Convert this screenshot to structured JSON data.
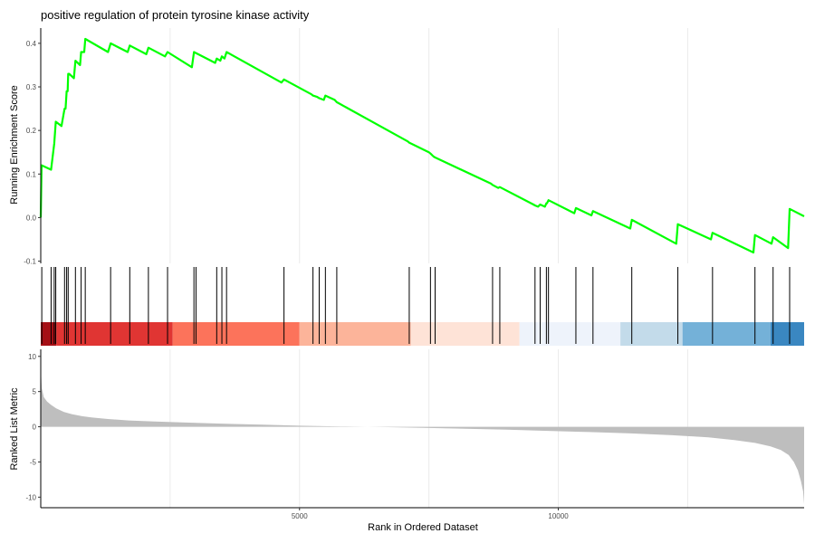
{
  "chart_data": {
    "type": "line",
    "title": "positive regulation of protein tyrosine kinase activity",
    "xlabel": "Rank in Ordered Dataset",
    "xlim": [
      0,
      14750
    ],
    "x_ticks": [
      5000,
      10000
    ],
    "panels": {
      "enrichment": {
        "ylabel": "Running Enrichment Score",
        "ylim": [
          -0.105,
          0.435
        ],
        "y_ticks": [
          -0.1,
          0.0,
          0.1,
          0.2,
          0.3,
          0.4
        ],
        "line_color": "#00ff00",
        "series": [
          {
            "x": [
              0,
              15,
              20,
              200,
              260,
              290,
              400,
              460,
              480,
              500,
              520,
              530,
              550,
              640,
              670,
              760,
              780,
              840,
              860,
              1300,
              1350,
              1680,
              1720,
              2040,
              2080,
              2400,
              2450,
              2920,
              2960,
              3370,
              3400,
              3470,
              3500,
              3550,
              3590,
              4650,
              4700,
              5230,
              5260,
              5340,
              5380,
              5470,
              5500,
              5680,
              5720,
              7090,
              7120,
              7500,
              7530,
              7590,
              7620,
              8700,
              8730,
              8840,
              8870,
              9520,
              9550,
              9610,
              9650,
              9740,
              9770,
              9780,
              9810,
              10310,
              10340,
              10640,
              10670,
              11390,
              11420,
              12280,
              12310,
              12950,
              12980,
              13770,
              13800,
              14120,
              14150,
              14440,
              14470,
              14750
            ],
            "y": [
              0.0,
              0.12,
              0.12,
              0.11,
              0.17,
              0.22,
              0.21,
              0.25,
              0.25,
              0.29,
              0.29,
              0.33,
              0.33,
              0.32,
              0.36,
              0.35,
              0.38,
              0.38,
              0.41,
              0.38,
              0.4,
              0.38,
              0.395,
              0.375,
              0.39,
              0.37,
              0.38,
              0.345,
              0.38,
              0.355,
              0.365,
              0.36,
              0.37,
              0.365,
              0.38,
              0.31,
              0.317,
              0.283,
              0.28,
              0.277,
              0.274,
              0.27,
              0.28,
              0.27,
              0.265,
              0.175,
              0.172,
              0.15,
              0.147,
              0.14,
              0.138,
              0.078,
              0.075,
              0.068,
              0.07,
              0.03,
              0.028,
              0.025,
              0.03,
              0.025,
              0.033,
              0.033,
              0.04,
              0.01,
              0.022,
              0.005,
              0.015,
              -0.025,
              -0.005,
              -0.06,
              -0.015,
              -0.05,
              -0.035,
              -0.08,
              -0.04,
              -0.06,
              -0.045,
              -0.07,
              0.02,
              0.003
            ]
          }
        ]
      },
      "hits": {
        "hit_ranks": [
          20,
          200,
          260,
          290,
          460,
          500,
          530,
          670,
          780,
          860,
          1350,
          1720,
          2080,
          2450,
          2960,
          3000,
          3400,
          3500,
          3590,
          4700,
          5260,
          5380,
          5500,
          5720,
          7120,
          7530,
          7620,
          8730,
          8870,
          9550,
          9650,
          9770,
          9810,
          10340,
          10670,
          11420,
          12310,
          12980,
          13800,
          14150,
          14470
        ],
        "color_bands": [
          {
            "from": 0,
            "to": 300,
            "color": "#a50f15"
          },
          {
            "from": 300,
            "to": 2550,
            "color": "#e03533"
          },
          {
            "from": 2550,
            "to": 5000,
            "color": "#fc735b"
          },
          {
            "from": 5000,
            "to": 7150,
            "color": "#fcb49a"
          },
          {
            "from": 7150,
            "to": 9250,
            "color": "#fee3d7"
          },
          {
            "from": 9250,
            "to": 11200,
            "color": "#eef3fb"
          },
          {
            "from": 11200,
            "to": 12400,
            "color": "#c3dbea"
          },
          {
            "from": 12400,
            "to": 14100,
            "color": "#74b1d8"
          },
          {
            "from": 14100,
            "to": 14750,
            "color": "#3a87c1"
          }
        ]
      },
      "ranked_metric": {
        "ylabel": "Ranked List Metric",
        "ylim": [
          -11.5,
          11
        ],
        "y_ticks": [
          10,
          5,
          0,
          -5,
          -10
        ],
        "fill_color": "#bebebe",
        "x": [
          0,
          20,
          60,
          120,
          200,
          300,
          450,
          600,
          800,
          1000,
          1300,
          1700,
          2200,
          2800,
          3500,
          4300,
          5000,
          5800,
          6600,
          7400,
          8200,
          9000,
          9800,
          10600,
          11400,
          12200,
          12900,
          13400,
          13800,
          14100,
          14300,
          14450,
          14550,
          14630,
          14690,
          14730,
          14750
        ],
        "y": [
          8.5,
          5.5,
          4.2,
          3.6,
          3.1,
          2.6,
          2.1,
          1.8,
          1.5,
          1.3,
          1.1,
          0.9,
          0.75,
          0.6,
          0.45,
          0.3,
          0.15,
          0.05,
          -0.05,
          -0.15,
          -0.28,
          -0.42,
          -0.58,
          -0.75,
          -0.95,
          -1.2,
          -1.5,
          -1.9,
          -2.3,
          -2.8,
          -3.3,
          -4.0,
          -5.0,
          -6.2,
          -7.8,
          -9.2,
          -11.0
        ]
      }
    }
  }
}
